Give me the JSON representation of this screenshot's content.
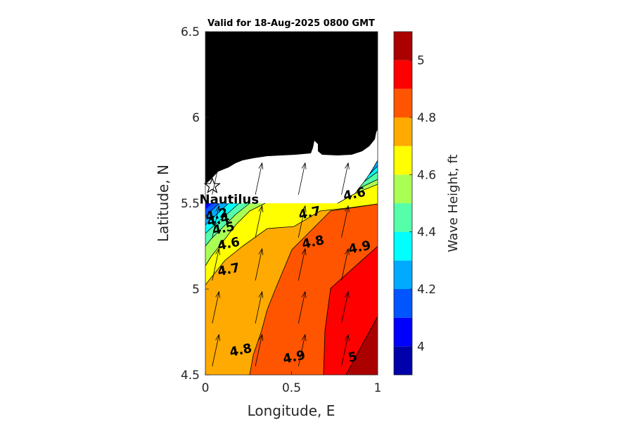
{
  "chart_data": {
    "type": "contour",
    "title": "Valid for 18-Aug-2025 0800 GMT",
    "xlabel": "Longitude, E",
    "ylabel": "Latitude, N",
    "xlim": [
      0,
      1
    ],
    "ylim": [
      4.5,
      6.5
    ],
    "xticks": [
      {
        "value": 0,
        "label": "0"
      },
      {
        "value": 0.5,
        "label": "0.5"
      },
      {
        "value": 1,
        "label": "1"
      }
    ],
    "yticks": [
      {
        "value": 4.5,
        "label": "4.5"
      },
      {
        "value": 5,
        "label": "5"
      },
      {
        "value": 5.5,
        "label": "5.5"
      },
      {
        "value": 6,
        "label": "6"
      },
      {
        "value": 6.5,
        "label": "6.5"
      }
    ],
    "colorbar": {
      "label": "Wave Height, ft",
      "range": [
        3.9,
        5.1
      ],
      "ticks": [
        {
          "value": 4,
          "label": "4"
        },
        {
          "value": 4.2,
          "label": "4.2"
        },
        {
          "value": 4.4,
          "label": "4.4"
        },
        {
          "value": 4.6,
          "label": "4.6"
        },
        {
          "value": 4.8,
          "label": "4.8"
        },
        {
          "value": 5,
          "label": "5"
        }
      ],
      "bins": [
        {
          "from": 3.9,
          "to": 4.0,
          "color": "#0000aa"
        },
        {
          "from": 4.0,
          "to": 4.1,
          "color": "#0000ff"
        },
        {
          "from": 4.1,
          "to": 4.2,
          "color": "#0055ff"
        },
        {
          "from": 4.2,
          "to": 4.3,
          "color": "#00aaff"
        },
        {
          "from": 4.3,
          "to": 4.4,
          "color": "#00ffff"
        },
        {
          "from": 4.4,
          "to": 4.5,
          "color": "#55ffaa"
        },
        {
          "from": 4.5,
          "to": 4.6,
          "color": "#aaff55"
        },
        {
          "from": 4.6,
          "to": 4.7,
          "color": "#ffff00"
        },
        {
          "from": 4.7,
          "to": 4.8,
          "color": "#ffaa00"
        },
        {
          "from": 4.8,
          "to": 4.9,
          "color": "#ff5500"
        },
        {
          "from": 4.9,
          "to": 5.0,
          "color": "#ff0000"
        },
        {
          "from": 5.0,
          "to": 5.1,
          "color": "#aa0000"
        }
      ]
    },
    "land_color": "#000000",
    "sea_mask_color": "#ffffff",
    "contour_labels": [
      {
        "text": "4.6",
        "lon": 0.87,
        "lat": 5.53
      },
      {
        "text": "4.7",
        "lon": 0.61,
        "lat": 5.42
      },
      {
        "text": "4.8",
        "lon": 0.63,
        "lat": 5.25
      },
      {
        "text": "4.9",
        "lon": 0.9,
        "lat": 5.22
      },
      {
        "text": "4.2",
        "lon": 0.07,
        "lat": 5.41
      },
      {
        "text": "4.4",
        "lon": 0.08,
        "lat": 5.38
      },
      {
        "text": "4.5",
        "lon": 0.11,
        "lat": 5.33
      },
      {
        "text": "4.6",
        "lon": 0.14,
        "lat": 5.24
      },
      {
        "text": "4.7",
        "lon": 0.14,
        "lat": 5.09
      },
      {
        "text": "4.8",
        "lon": 0.21,
        "lat": 4.62
      },
      {
        "text": "4.9",
        "lon": 0.52,
        "lat": 4.58
      },
      {
        "text": "5",
        "lon": 0.86,
        "lat": 4.58
      }
    ],
    "marker": {
      "name": "Nautilus",
      "symbol": "star",
      "lon": 0.04,
      "lat": 5.6
    },
    "wave_direction_arrows": {
      "lons": [
        0.04,
        0.29,
        0.54,
        0.79
      ],
      "lats": [
        4.55,
        4.8,
        5.05,
        5.3,
        5.55
      ],
      "direction_deg_from_north": 12
    }
  }
}
